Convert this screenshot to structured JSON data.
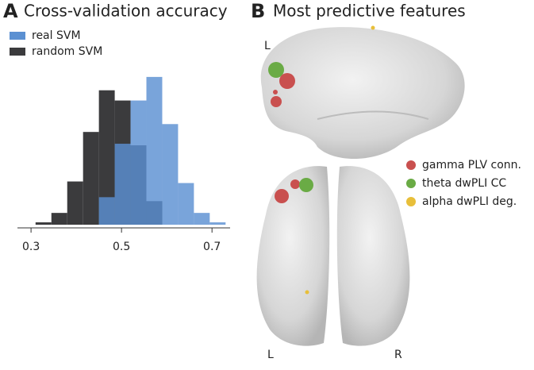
{
  "chart_data": {
    "type": "histogram",
    "panel_label": "A",
    "title": "Cross-validation accuracy",
    "bins": [
      0.31,
      0.345,
      0.38,
      0.415,
      0.45,
      0.485,
      0.52,
      0.555,
      0.59,
      0.625,
      0.66,
      0.695,
      0.73
    ],
    "series": [
      {
        "name": "random SVM",
        "color": "#3b3b3d",
        "values": [
          3,
          15,
          55,
          118,
          171,
          158,
          101,
          30,
          0,
          0,
          0,
          0
        ]
      },
      {
        "name": "real SVM",
        "color": "#5b90d2",
        "values": [
          0,
          0,
          0,
          0,
          35,
          103,
          158,
          188,
          128,
          53,
          15,
          3
        ]
      }
    ],
    "xlim": [
      0.27,
      0.74
    ],
    "xticks": [
      0.3,
      0.5,
      0.7
    ],
    "ylim": [
      0,
      200
    ],
    "legend": "upper left"
  },
  "panel_b": {
    "label": "B",
    "title": "Most predictive features",
    "lateral_side": "L",
    "axial_sides": [
      "L",
      "R"
    ],
    "legend": [
      {
        "name": "gamma PLV conn.",
        "color": "#c9504f"
      },
      {
        "name": "theta dwPLI CC",
        "color": "#6aab45"
      },
      {
        "name": "alpha dwPLI deg.",
        "color": "#e8bf3a"
      }
    ]
  }
}
